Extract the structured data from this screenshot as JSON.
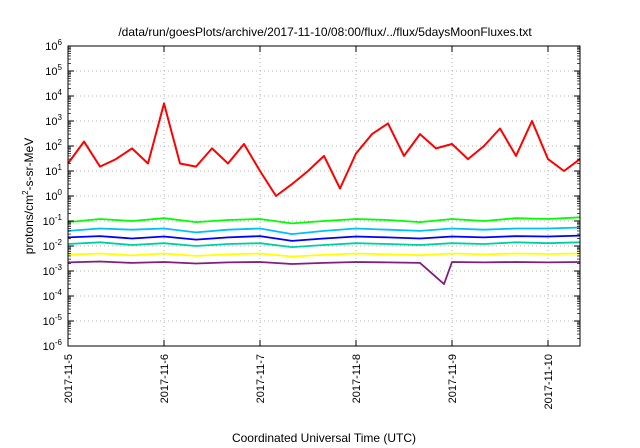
{
  "chart_data": {
    "type": "line",
    "title": "/data/run/goesPlots/archive/2017-11-10/08:00/flux/../flux/5daysMoonFluxes.txt",
    "xlabel": "Coordinated Universal Time (UTC)",
    "ylabel_base": "protons/cm",
    "ylabel_sup": "2",
    "ylabel_rest": "-s-sr-MeV",
    "yscale": "log",
    "ylim": [
      1e-06,
      1000000.0
    ],
    "xlim": [
      "2017-11-05",
      "2017-11-10T08:00"
    ],
    "grid": true,
    "x_ticks": [
      "2017-11-5",
      "2017-11-6",
      "2017-11-7",
      "2017-11-8",
      "2017-11-9",
      "2017-11-10"
    ],
    "y_ticks": [
      {
        "base": "10",
        "exp": "-6"
      },
      {
        "base": "10",
        "exp": "-5"
      },
      {
        "base": "10",
        "exp": "-4"
      },
      {
        "base": "10",
        "exp": "-3"
      },
      {
        "base": "10",
        "exp": "-2"
      },
      {
        "base": "10",
        "exp": "-1"
      },
      {
        "base": "10",
        "exp": "0"
      },
      {
        "base": "10",
        "exp": "1"
      },
      {
        "base": "10",
        "exp": "2"
      },
      {
        "base": "10",
        "exp": "3"
      },
      {
        "base": "10",
        "exp": "4"
      },
      {
        "base": "10",
        "exp": "5"
      },
      {
        "base": "10",
        "exp": "6"
      }
    ],
    "series": [
      {
        "color": "#ff0000",
        "x": [
          "2017-11-05T00:00",
          "2017-11-05T04:00",
          "2017-11-05T08:00",
          "2017-11-05T12:00",
          "2017-11-05T16:00",
          "2017-11-05T20:00",
          "2017-11-06T00:00",
          "2017-11-06T04:00",
          "2017-11-06T08:00",
          "2017-11-06T12:00",
          "2017-11-06T16:00",
          "2017-11-06T20:00",
          "2017-11-07T00:00",
          "2017-11-07T04:00",
          "2017-11-07T08:00",
          "2017-11-07T12:00",
          "2017-11-07T16:00",
          "2017-11-07T20:00",
          "2017-11-08T00:00",
          "2017-11-08T04:00",
          "2017-11-08T08:00",
          "2017-11-08T12:00",
          "2017-11-08T16:00",
          "2017-11-08T20:00",
          "2017-11-09T00:00",
          "2017-11-09T04:00",
          "2017-11-09T08:00",
          "2017-11-09T12:00",
          "2017-11-09T16:00",
          "2017-11-09T20:00",
          "2017-11-10T00:00",
          "2017-11-10T04:00",
          "2017-11-10T08:00"
        ],
        "y": [
          20,
          150,
          15,
          30,
          80,
          20,
          5000,
          20,
          15,
          80,
          20,
          120,
          10,
          1,
          3,
          10,
          40,
          2,
          50,
          300,
          800,
          40,
          300,
          80,
          120,
          30,
          100,
          500,
          40,
          1000,
          30,
          10,
          30
        ]
      },
      {
        "color": "#00ff00",
        "x": [
          "2017-11-05T00:00",
          "2017-11-05T08:00",
          "2017-11-05T16:00",
          "2017-11-06T00:00",
          "2017-11-06T08:00",
          "2017-11-06T16:00",
          "2017-11-07T00:00",
          "2017-11-07T08:00",
          "2017-11-07T16:00",
          "2017-11-08T00:00",
          "2017-11-08T08:00",
          "2017-11-08T16:00",
          "2017-11-09T00:00",
          "2017-11-09T08:00",
          "2017-11-09T16:00",
          "2017-11-10T00:00",
          "2017-11-10T08:00"
        ],
        "y": [
          0.09,
          0.12,
          0.1,
          0.13,
          0.09,
          0.11,
          0.12,
          0.08,
          0.1,
          0.12,
          0.11,
          0.09,
          0.12,
          0.1,
          0.13,
          0.12,
          0.14
        ]
      },
      {
        "color": "#00bfff",
        "x": [
          "2017-11-05T00:00",
          "2017-11-05T08:00",
          "2017-11-05T16:00",
          "2017-11-06T00:00",
          "2017-11-06T08:00",
          "2017-11-06T16:00",
          "2017-11-07T00:00",
          "2017-11-07T08:00",
          "2017-11-07T16:00",
          "2017-11-08T00:00",
          "2017-11-08T08:00",
          "2017-11-08T16:00",
          "2017-11-09T00:00",
          "2017-11-09T08:00",
          "2017-11-09T16:00",
          "2017-11-10T00:00",
          "2017-11-10T08:00"
        ],
        "y": [
          0.04,
          0.05,
          0.045,
          0.05,
          0.035,
          0.045,
          0.05,
          0.03,
          0.04,
          0.05,
          0.045,
          0.04,
          0.05,
          0.045,
          0.05,
          0.05,
          0.055
        ]
      },
      {
        "color": "#0000ff",
        "x": [
          "2017-11-05T00:00",
          "2017-11-05T08:00",
          "2017-11-05T16:00",
          "2017-11-06T00:00",
          "2017-11-06T08:00",
          "2017-11-06T16:00",
          "2017-11-07T00:00",
          "2017-11-07T08:00",
          "2017-11-07T16:00",
          "2017-11-08T00:00",
          "2017-11-08T08:00",
          "2017-11-08T16:00",
          "2017-11-09T00:00",
          "2017-11-09T08:00",
          "2017-11-09T16:00",
          "2017-11-10T00:00",
          "2017-11-10T08:00"
        ],
        "y": [
          0.022,
          0.025,
          0.02,
          0.024,
          0.018,
          0.022,
          0.025,
          0.016,
          0.02,
          0.024,
          0.022,
          0.02,
          0.024,
          0.022,
          0.025,
          0.024,
          0.026
        ]
      },
      {
        "color": "#00d0a0",
        "x": [
          "2017-11-05T00:00",
          "2017-11-05T08:00",
          "2017-11-05T16:00",
          "2017-11-06T00:00",
          "2017-11-06T08:00",
          "2017-11-06T16:00",
          "2017-11-07T00:00",
          "2017-11-07T08:00",
          "2017-11-07T16:00",
          "2017-11-08T00:00",
          "2017-11-08T08:00",
          "2017-11-08T16:00",
          "2017-11-09T00:00",
          "2017-11-09T08:00",
          "2017-11-09T16:00",
          "2017-11-10T00:00",
          "2017-11-10T08:00"
        ],
        "y": [
          0.012,
          0.014,
          0.011,
          0.013,
          0.01,
          0.012,
          0.013,
          0.009,
          0.011,
          0.013,
          0.012,
          0.011,
          0.013,
          0.012,
          0.014,
          0.013,
          0.014
        ]
      },
      {
        "color": "#ffff00",
        "x": [
          "2017-11-05T00:00",
          "2017-11-05T08:00",
          "2017-11-05T16:00",
          "2017-11-06T00:00",
          "2017-11-06T08:00",
          "2017-11-06T16:00",
          "2017-11-07T00:00",
          "2017-11-07T08:00",
          "2017-11-07T16:00",
          "2017-11-08T00:00",
          "2017-11-08T08:00",
          "2017-11-08T16:00",
          "2017-11-09T00:00",
          "2017-11-09T08:00",
          "2017-11-09T16:00",
          "2017-11-10T00:00",
          "2017-11-10T08:00"
        ],
        "y": [
          0.0045,
          0.005,
          0.0042,
          0.005,
          0.004,
          0.0046,
          0.005,
          0.0038,
          0.0044,
          0.005,
          0.0046,
          0.0043,
          0.005,
          0.0046,
          0.005,
          0.0048,
          0.005
        ]
      },
      {
        "color": "#7f1f7f",
        "x": [
          "2017-11-05T00:00",
          "2017-11-05T08:00",
          "2017-11-05T16:00",
          "2017-11-06T00:00",
          "2017-11-06T08:00",
          "2017-11-06T16:00",
          "2017-11-07T00:00",
          "2017-11-07T08:00",
          "2017-11-07T16:00",
          "2017-11-08T00:00",
          "2017-11-08T08:00",
          "2017-11-08T16:00",
          "2017-11-08T22:00",
          "2017-11-09T00:00",
          "2017-11-09T08:00",
          "2017-11-09T16:00",
          "2017-11-10T00:00",
          "2017-11-10T08:00"
        ],
        "y": [
          0.0022,
          0.0024,
          0.0021,
          0.0023,
          0.002,
          0.0022,
          0.0023,
          0.0019,
          0.0021,
          0.0023,
          0.0022,
          0.0021,
          0.0003,
          0.0023,
          0.0022,
          0.0023,
          0.0022,
          0.0023
        ]
      }
    ]
  }
}
